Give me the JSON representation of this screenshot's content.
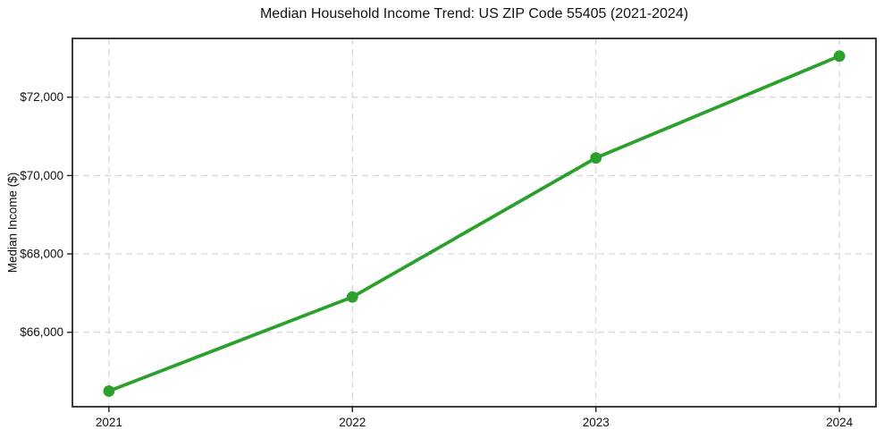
{
  "chart_data": {
    "type": "line",
    "title": "Median Household Income Trend: US ZIP Code 55405 (2021-2024)",
    "xlabel": "",
    "ylabel": "Median Income ($)",
    "x": [
      2021,
      2022,
      2023,
      2024
    ],
    "values": [
      64500,
      66900,
      70450,
      73050
    ],
    "xlim": [
      2020.85,
      2024.15
    ],
    "ylim": [
      64100,
      73500
    ],
    "xticks": [
      2021,
      2022,
      2023,
      2024
    ],
    "xtick_labels": [
      "2021",
      "2022",
      "2023",
      "2024"
    ],
    "yticks": [
      66000,
      68000,
      70000,
      72000
    ],
    "ytick_labels": [
      "$66,000",
      "$68,000",
      "$70,000",
      "$72,000"
    ],
    "grid": true,
    "grid_style": "dashed",
    "legend_position": "none",
    "colors": {
      "line": "#2ca02c",
      "marker": "#2ca02c",
      "grid": "#d6d6d6",
      "spine": "#1a1a1a",
      "tick": "#222222",
      "background": "#ffffff"
    }
  }
}
